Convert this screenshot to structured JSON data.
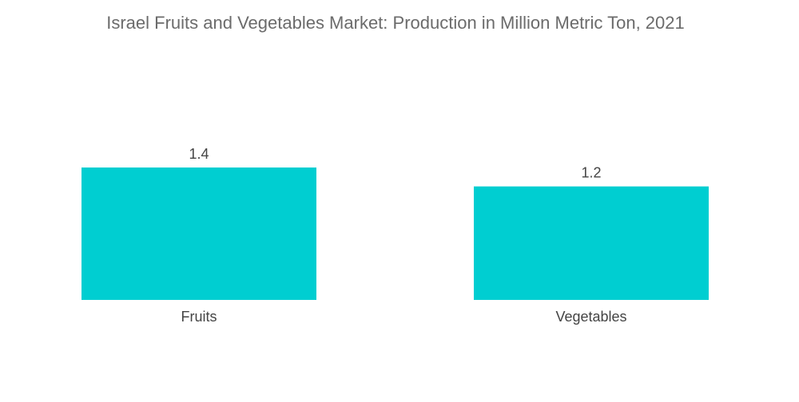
{
  "chart_data": {
    "type": "bar",
    "title": "Israel Fruits and Vegetables Market: Production in Million Metric Ton, 2021",
    "categories": [
      "Fruits",
      "Vegetables"
    ],
    "values": [
      1.4,
      1.2
    ],
    "data_labels": [
      "1.4",
      "1.2"
    ],
    "xlabel": "",
    "ylabel": "",
    "ylim": [
      0,
      1.4
    ],
    "grid": false,
    "legend": "none",
    "bar_color": "#00CED1"
  }
}
